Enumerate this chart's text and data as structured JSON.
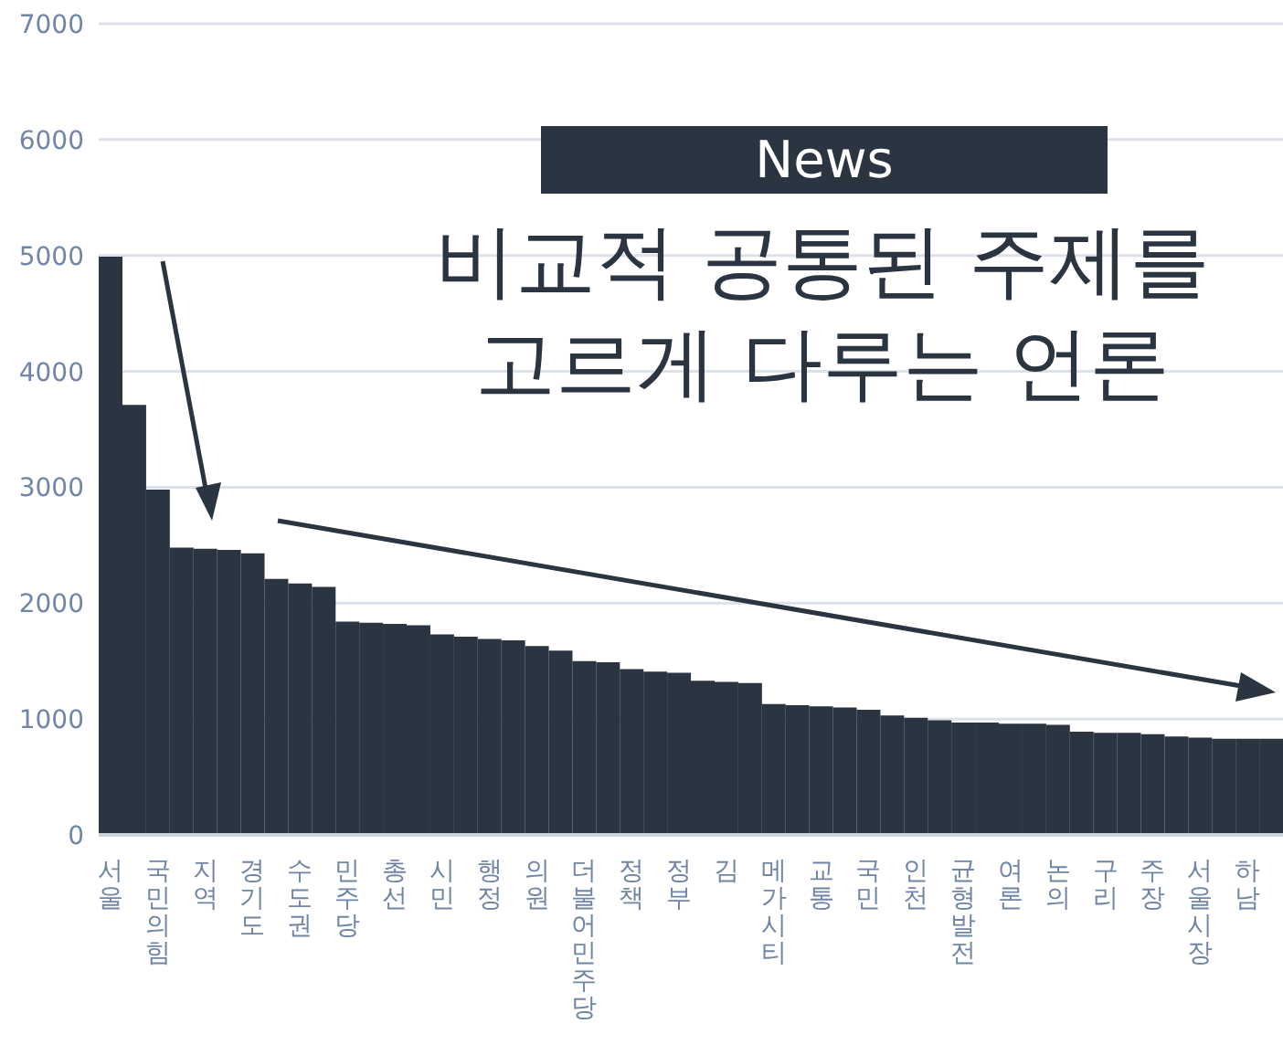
{
  "chart_data": {
    "type": "bar",
    "title": "비교적 공통된 주제를 고르게 다루는 언론",
    "subtitle": "News",
    "categories": [
      "서울",
      null,
      "국민의힘",
      null,
      "지역",
      null,
      "경기도",
      null,
      "수도권",
      null,
      "민주당",
      null,
      "총선",
      null,
      "시민",
      null,
      "행정",
      null,
      "의원",
      null,
      "더불어민주당",
      null,
      "정책",
      null,
      "정부",
      null,
      "김",
      null,
      "메가시티",
      null,
      "교통",
      null,
      "국민",
      null,
      "인천",
      null,
      "균형발전",
      null,
      "여론",
      null,
      "논의",
      null,
      "구리",
      null,
      "주장",
      null,
      "서울시장",
      null,
      "하남",
      null
    ],
    "values": [
      4990,
      3710,
      2980,
      2480,
      2470,
      2460,
      2430,
      2210,
      2170,
      2140,
      1840,
      1830,
      1820,
      1810,
      1730,
      1710,
      1690,
      1680,
      1630,
      1590,
      1500,
      1490,
      1430,
      1410,
      1400,
      1330,
      1320,
      1310,
      1130,
      1120,
      1110,
      1100,
      1080,
      1030,
      1010,
      990,
      970,
      970,
      960,
      960,
      950,
      890,
      880,
      880,
      870,
      850,
      840,
      830,
      830,
      830
    ],
    "color": "#2b3441",
    "ylim": [
      0,
      7000
    ],
    "yticks": [
      0,
      1000,
      2000,
      3000,
      4000,
      5000,
      6000,
      7000
    ],
    "grid": "y"
  }
}
